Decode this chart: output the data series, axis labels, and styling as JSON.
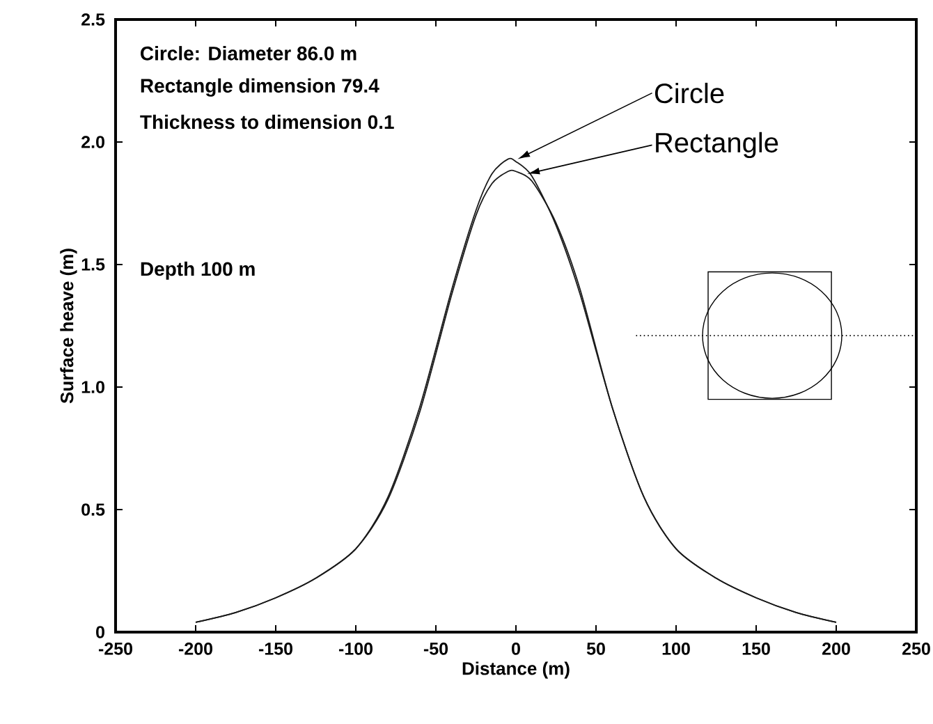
{
  "chart_data": {
    "type": "line",
    "xlabel": "Distance (m)",
    "ylabel": "Surface heave (m)",
    "annotations": [
      "Circle: Diameter 86.0 m",
      "Rectangle dimension 79.4",
      "Thickness to dimension 0.1",
      "Depth 100 m"
    ],
    "x": [
      -200,
      -175,
      -150,
      -125,
      -100,
      -80,
      -60,
      -40,
      -25,
      -15,
      -5,
      0,
      10,
      25,
      40,
      60,
      80,
      100,
      125,
      150,
      175,
      200
    ],
    "series": [
      {
        "name": "Circle",
        "color": "#1a1a1a",
        "values": [
          0.04,
          0.08,
          0.14,
          0.22,
          0.34,
          0.55,
          0.92,
          1.4,
          1.72,
          1.87,
          1.93,
          1.92,
          1.86,
          1.66,
          1.38,
          0.92,
          0.55,
          0.34,
          0.22,
          0.14,
          0.08,
          0.04
        ]
      },
      {
        "name": "Rectangle",
        "color": "#1a1a1a",
        "values": [
          0.04,
          0.08,
          0.14,
          0.22,
          0.34,
          0.54,
          0.9,
          1.38,
          1.7,
          1.83,
          1.88,
          1.88,
          1.84,
          1.67,
          1.4,
          0.92,
          0.55,
          0.34,
          0.22,
          0.14,
          0.08,
          0.04
        ]
      }
    ],
    "xlim": [
      -250,
      250
    ],
    "xticks": [
      -250,
      -200,
      -150,
      -100,
      -50,
      0,
      50,
      100,
      150,
      200,
      250
    ],
    "ylim": [
      0,
      2.5
    ],
    "yticks": [
      0,
      {
        "value": 0.5,
        "label": "0.5"
      },
      {
        "value": 1,
        "label": "1.0"
      },
      {
        "value": 1.5,
        "label": "1.5"
      },
      {
        "value": 2,
        "label": "2.0"
      },
      {
        "value": 2.5,
        "label": "2.5"
      }
    ],
    "grid": false
  }
}
